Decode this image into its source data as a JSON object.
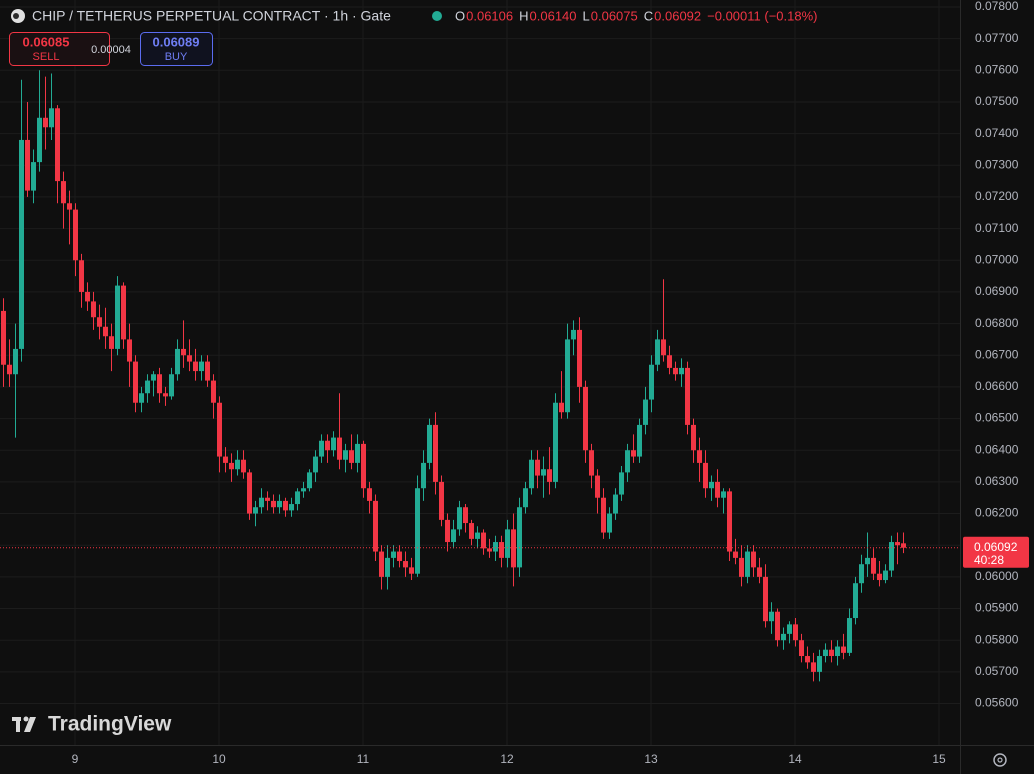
{
  "chart_data": {
    "type": "candlestick",
    "title": "CHIP / TETHERUS PERPETUAL CONTRACT · 1h · Gate",
    "ohlc_legend": [
      {
        "label": "O",
        "value": "0.06106"
      },
      {
        "label": "H",
        "value": "0.06140"
      },
      {
        "label": "L",
        "value": "0.06075"
      },
      {
        "label": "C",
        "value": "0.06092"
      }
    ],
    "change": "−0.00011 (−0.18%)",
    "trade": {
      "sell_price": "0.06085",
      "sell_label": "SELL",
      "spread": "0.00004",
      "buy_price": "0.06089",
      "buy_label": "BUY"
    },
    "last_price": {
      "value": 0.06092,
      "label": "0.06092",
      "countdown": "40:28"
    },
    "watermark": "TradingView",
    "up_color": "#22ab94",
    "down_color": "#f23645",
    "grid": true,
    "xlim": [
      8.4792,
      15.1458
    ],
    "ylim": [
      0.05469,
      0.07822
    ],
    "xticks": [
      9,
      10,
      11,
      12,
      13,
      14,
      15
    ],
    "yticks": [
      {
        "value": 0.056,
        "label": "0.05600"
      },
      {
        "value": 0.057,
        "label": "0.05700"
      },
      {
        "value": 0.058,
        "label": "0.05800"
      },
      {
        "value": 0.059,
        "label": "0.05900"
      },
      {
        "value": 0.06,
        "label": "0.06000"
      },
      {
        "value": 0.061,
        "label": "0.06100"
      },
      {
        "value": 0.062,
        "label": "0.06200"
      },
      {
        "value": 0.063,
        "label": "0.06300"
      },
      {
        "value": 0.064,
        "label": "0.06400"
      },
      {
        "value": 0.065,
        "label": "0.06500"
      },
      {
        "value": 0.066,
        "label": "0.06600"
      },
      {
        "value": 0.067,
        "label": "0.06700"
      },
      {
        "value": 0.068,
        "label": "0.06800"
      },
      {
        "value": 0.069,
        "label": "0.06900"
      },
      {
        "value": 0.07,
        "label": "0.07000"
      },
      {
        "value": 0.071,
        "label": "0.07100"
      },
      {
        "value": 0.072,
        "label": "0.07200"
      },
      {
        "value": 0.073,
        "label": "0.07300"
      },
      {
        "value": 0.074,
        "label": "0.07400"
      },
      {
        "value": 0.075,
        "label": "0.07500"
      },
      {
        "value": 0.076,
        "label": "0.07600"
      },
      {
        "value": 0.077,
        "label": "0.07700"
      },
      {
        "value": 0.078,
        "label": "0.07800"
      }
    ],
    "x": [
      8.5,
      8.5417,
      8.5833,
      8.625,
      8.6667,
      8.7083,
      8.75,
      8.7917,
      8.8333,
      8.875,
      8.9167,
      8.9583,
      9,
      9.0417,
      9.0833,
      9.125,
      9.1667,
      9.2083,
      9.25,
      9.2917,
      9.3333,
      9.375,
      9.4167,
      9.4583,
      9.5,
      9.5417,
      9.5833,
      9.625,
      9.6667,
      9.7083,
      9.75,
      9.7917,
      9.8333,
      9.875,
      9.9167,
      9.9583,
      10,
      10.0417,
      10.0833,
      10.125,
      10.1667,
      10.2083,
      10.25,
      10.2917,
      10.3333,
      10.375,
      10.4167,
      10.4583,
      10.5,
      10.5417,
      10.5833,
      10.625,
      10.6667,
      10.7083,
      10.75,
      10.7917,
      10.8333,
      10.875,
      10.9167,
      10.9583,
      11,
      11.0417,
      11.0833,
      11.125,
      11.1667,
      11.2083,
      11.25,
      11.2917,
      11.3333,
      11.375,
      11.4167,
      11.4583,
      11.5,
      11.5417,
      11.5833,
      11.625,
      11.6667,
      11.7083,
      11.75,
      11.7917,
      11.8333,
      11.875,
      11.9167,
      11.9583,
      12,
      12.0417,
      12.0833,
      12.125,
      12.1667,
      12.2083,
      12.25,
      12.2917,
      12.3333,
      12.375,
      12.4167,
      12.4583,
      12.5,
      12.5417,
      12.5833,
      12.625,
      12.6667,
      12.7083,
      12.75,
      12.7917,
      12.8333,
      12.875,
      12.9167,
      12.9583,
      13,
      13.0417,
      13.0833,
      13.125,
      13.1667,
      13.2083,
      13.25,
      13.2917,
      13.3333,
      13.375,
      13.4167,
      13.4583,
      13.5,
      13.5417,
      13.5833,
      13.625,
      13.6667,
      13.7083,
      13.75,
      13.7917,
      13.8333,
      13.875,
      13.9167,
      13.9583,
      14,
      14.0417,
      14.0833,
      14.125,
      14.1667,
      14.2083,
      14.25,
      14.2917,
      14.3333,
      14.375,
      14.4167,
      14.4583,
      14.5,
      14.5417,
      14.5833,
      14.625,
      14.6667,
      14.7083,
      14.75
    ],
    "open": [
      0.0684,
      0.0667,
      0.0664,
      0.0672,
      0.0738,
      0.0722,
      0.0731,
      0.0745,
      0.0742,
      0.0748,
      0.0725,
      0.0718,
      0.0716,
      0.07,
      0.069,
      0.0687,
      0.0682,
      0.0679,
      0.0676,
      0.0672,
      0.0692,
      0.0675,
      0.0668,
      0.0655,
      0.0658,
      0.0662,
      0.0664,
      0.0658,
      0.0657,
      0.0664,
      0.0672,
      0.067,
      0.0668,
      0.0665,
      0.0668,
      0.0662,
      0.0655,
      0.0638,
      0.0636,
      0.0634,
      0.0637,
      0.0633,
      0.062,
      0.0622,
      0.0625,
      0.0624,
      0.0622,
      0.0624,
      0.0621,
      0.0623,
      0.0627,
      0.0628,
      0.0633,
      0.0638,
      0.0643,
      0.064,
      0.0644,
      0.0637,
      0.064,
      0.0636,
      0.0642,
      0.0628,
      0.0624,
      0.0608,
      0.06,
      0.0606,
      0.0608,
      0.0605,
      0.0603,
      0.0601,
      0.0628,
      0.0636,
      0.0648,
      0.063,
      0.0618,
      0.0611,
      0.0615,
      0.0622,
      0.0617,
      0.0612,
      0.0614,
      0.0609,
      0.0608,
      0.0611,
      0.0606,
      0.0615,
      0.0603,
      0.0622,
      0.0628,
      0.0637,
      0.0632,
      0.0634,
      0.063,
      0.0655,
      0.0652,
      0.0675,
      0.0678,
      0.066,
      0.064,
      0.0632,
      0.0625,
      0.0614,
      0.062,
      0.0626,
      0.0633,
      0.064,
      0.0638,
      0.0648,
      0.0656,
      0.0667,
      0.0675,
      0.067,
      0.0666,
      0.0664,
      0.0666,
      0.0648,
      0.064,
      0.0636,
      0.0628,
      0.063,
      0.0625,
      0.0627,
      0.0608,
      0.0606,
      0.06,
      0.0608,
      0.0603,
      0.06,
      0.0586,
      0.0589,
      0.058,
      0.0582,
      0.0585,
      0.058,
      0.0575,
      0.0573,
      0.057,
      0.0575,
      0.0577,
      0.0575,
      0.0578,
      0.0576,
      0.0587,
      0.0598,
      0.0604,
      0.0606,
      0.0601,
      0.0599,
      0.0602,
      0.0611,
      0.06106
    ],
    "high": [
      0.0688,
      0.0675,
      0.068,
      0.0757,
      0.075,
      0.0735,
      0.076,
      0.0758,
      0.0759,
      0.0749,
      0.0728,
      0.0722,
      0.0718,
      0.0702,
      0.0693,
      0.069,
      0.0686,
      0.0685,
      0.068,
      0.0695,
      0.0693,
      0.068,
      0.067,
      0.066,
      0.0664,
      0.0665,
      0.0666,
      0.066,
      0.0666,
      0.0675,
      0.0681,
      0.0675,
      0.0672,
      0.067,
      0.067,
      0.0664,
      0.0657,
      0.0641,
      0.0639,
      0.064,
      0.064,
      0.0634,
      0.0624,
      0.0628,
      0.0627,
      0.0626,
      0.0626,
      0.0625,
      0.0625,
      0.0628,
      0.063,
      0.0634,
      0.064,
      0.0645,
      0.0645,
      0.0646,
      0.0658,
      0.0642,
      0.0645,
      0.0645,
      0.0643,
      0.063,
      0.0626,
      0.061,
      0.061,
      0.061,
      0.061,
      0.0608,
      0.0606,
      0.0632,
      0.064,
      0.065,
      0.0652,
      0.0632,
      0.062,
      0.0618,
      0.0624,
      0.0623,
      0.0618,
      0.0616,
      0.0615,
      0.0612,
      0.0613,
      0.0613,
      0.0618,
      0.062,
      0.0625,
      0.063,
      0.064,
      0.064,
      0.0638,
      0.0641,
      0.0658,
      0.0665,
      0.068,
      0.0681,
      0.0682,
      0.0662,
      0.0642,
      0.0634,
      0.0628,
      0.0622,
      0.0628,
      0.0635,
      0.0642,
      0.0645,
      0.065,
      0.066,
      0.067,
      0.0678,
      0.0694,
      0.0673,
      0.0668,
      0.0669,
      0.0668,
      0.065,
      0.0644,
      0.064,
      0.0632,
      0.0634,
      0.0628,
      0.0628,
      0.0612,
      0.061,
      0.061,
      0.061,
      0.0606,
      0.0604,
      0.0592,
      0.059,
      0.0584,
      0.0586,
      0.0587,
      0.0582,
      0.0578,
      0.0576,
      0.0577,
      0.0579,
      0.058,
      0.058,
      0.0582,
      0.059,
      0.06,
      0.0607,
      0.0614,
      0.0609,
      0.0605,
      0.0604,
      0.0613,
      0.0614,
      0.0614
    ],
    "low": [
      0.066,
      0.066,
      0.0644,
      0.0668,
      0.072,
      0.0718,
      0.0728,
      0.0735,
      0.0738,
      0.0718,
      0.071,
      0.0705,
      0.0695,
      0.0685,
      0.0684,
      0.0678,
      0.0675,
      0.0672,
      0.0665,
      0.067,
      0.0672,
      0.066,
      0.0652,
      0.0652,
      0.0655,
      0.0657,
      0.0655,
      0.0654,
      0.0656,
      0.0662,
      0.0666,
      0.0665,
      0.0662,
      0.0662,
      0.066,
      0.065,
      0.0633,
      0.0633,
      0.063,
      0.0632,
      0.0631,
      0.0618,
      0.0616,
      0.062,
      0.0621,
      0.062,
      0.062,
      0.0619,
      0.0619,
      0.0621,
      0.0625,
      0.0627,
      0.063,
      0.0636,
      0.0636,
      0.0638,
      0.0634,
      0.0633,
      0.0634,
      0.0633,
      0.0625,
      0.062,
      0.0605,
      0.0596,
      0.0596,
      0.0603,
      0.0603,
      0.06,
      0.0599,
      0.06,
      0.0624,
      0.0634,
      0.0626,
      0.0616,
      0.0608,
      0.0609,
      0.0613,
      0.0614,
      0.061,
      0.0609,
      0.0607,
      0.0606,
      0.0605,
      0.0603,
      0.0603,
      0.0597,
      0.06,
      0.062,
      0.0626,
      0.0628,
      0.0625,
      0.0626,
      0.0628,
      0.065,
      0.065,
      0.067,
      0.0655,
      0.0636,
      0.0628,
      0.062,
      0.0612,
      0.0612,
      0.0618,
      0.0624,
      0.063,
      0.0636,
      0.0636,
      0.0645,
      0.0652,
      0.0665,
      0.0668,
      0.0664,
      0.0662,
      0.066,
      0.0645,
      0.0636,
      0.063,
      0.0625,
      0.0624,
      0.0622,
      0.062,
      0.0605,
      0.0604,
      0.0597,
      0.0598,
      0.06,
      0.0598,
      0.0584,
      0.0582,
      0.0578,
      0.0577,
      0.0579,
      0.0578,
      0.0573,
      0.0571,
      0.0567,
      0.0567,
      0.0573,
      0.0573,
      0.0572,
      0.0574,
      0.0575,
      0.0585,
      0.0595,
      0.06,
      0.0599,
      0.0597,
      0.0598,
      0.06,
      0.0604,
      0.06075
    ],
    "close": [
      0.0667,
      0.0664,
      0.0672,
      0.0738,
      0.0722,
      0.0731,
      0.0745,
      0.0742,
      0.0748,
      0.0725,
      0.0718,
      0.0716,
      0.07,
      0.069,
      0.0687,
      0.0682,
      0.0679,
      0.0676,
      0.0672,
      0.0692,
      0.0675,
      0.0668,
      0.0655,
      0.0658,
      0.0662,
      0.0664,
      0.0658,
      0.0657,
      0.0664,
      0.0672,
      0.067,
      0.0668,
      0.0665,
      0.0668,
      0.0662,
      0.0655,
      0.0638,
      0.0636,
      0.0634,
      0.0637,
      0.0633,
      0.062,
      0.0622,
      0.0625,
      0.0624,
      0.0622,
      0.0624,
      0.0621,
      0.0623,
      0.0627,
      0.0628,
      0.0633,
      0.0638,
      0.0643,
      0.064,
      0.0644,
      0.0637,
      0.064,
      0.0636,
      0.0642,
      0.0628,
      0.0624,
      0.0608,
      0.06,
      0.0606,
      0.0608,
      0.0605,
      0.0603,
      0.0601,
      0.0628,
      0.0636,
      0.0648,
      0.063,
      0.0618,
      0.0611,
      0.0615,
      0.0622,
      0.0617,
      0.0612,
      0.0614,
      0.0609,
      0.0608,
      0.0611,
      0.0606,
      0.0615,
      0.0603,
      0.0622,
      0.0628,
      0.0637,
      0.0632,
      0.0634,
      0.063,
      0.0655,
      0.0652,
      0.0675,
      0.0678,
      0.066,
      0.064,
      0.0632,
      0.0625,
      0.0614,
      0.062,
      0.0626,
      0.0633,
      0.064,
      0.0638,
      0.0648,
      0.0656,
      0.0667,
      0.0675,
      0.067,
      0.0666,
      0.0664,
      0.0666,
      0.0648,
      0.064,
      0.0636,
      0.0628,
      0.063,
      0.0625,
      0.0627,
      0.0608,
      0.0606,
      0.06,
      0.0608,
      0.0603,
      0.06,
      0.0586,
      0.0589,
      0.058,
      0.0582,
      0.0585,
      0.058,
      0.0575,
      0.0573,
      0.057,
      0.0575,
      0.0577,
      0.0575,
      0.0578,
      0.0576,
      0.0587,
      0.0598,
      0.0604,
      0.0606,
      0.0601,
      0.0599,
      0.0602,
      0.0611,
      0.061,
      0.06092
    ]
  }
}
